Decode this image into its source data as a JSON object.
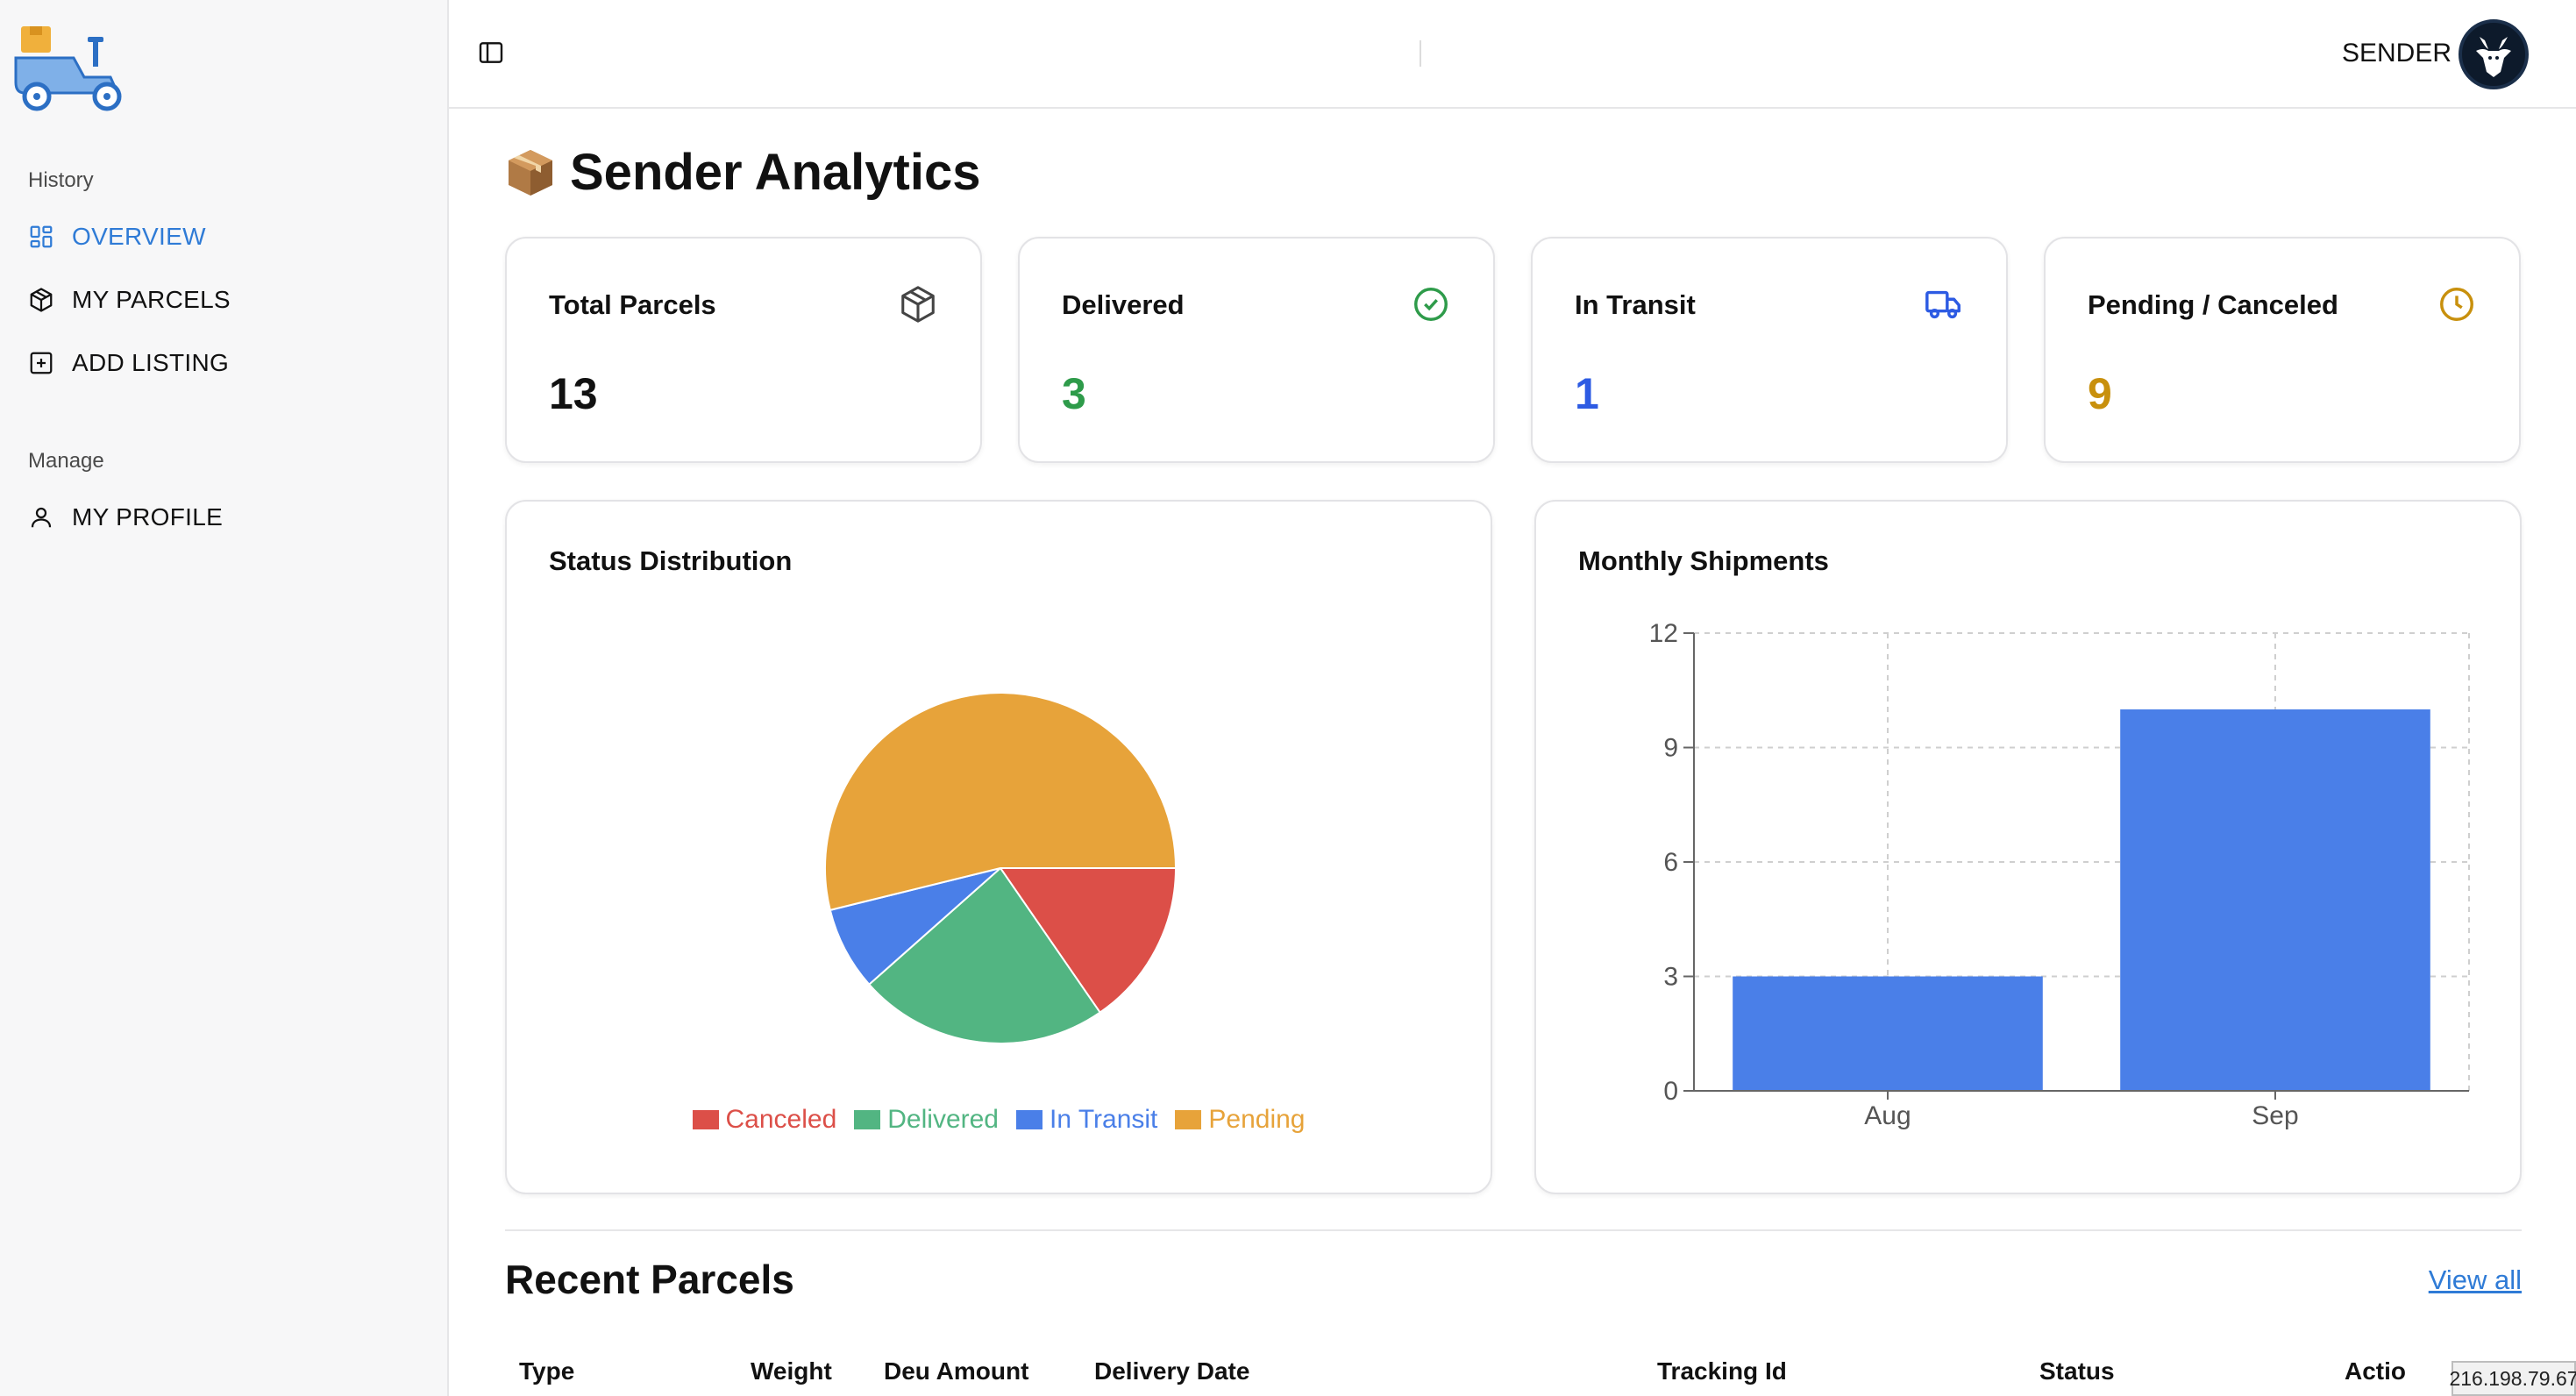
{
  "sidebar": {
    "groups": [
      {
        "label": "History",
        "items": [
          {
            "label": "OVERVIEW",
            "icon": "dashboard-icon",
            "active": true
          },
          {
            "label": "MY PARCELS",
            "icon": "package-icon"
          },
          {
            "label": "ADD LISTING",
            "icon": "plus-square-icon"
          }
        ]
      },
      {
        "label": "Manage",
        "items": [
          {
            "label": "MY PROFILE",
            "icon": "user-icon"
          }
        ]
      }
    ]
  },
  "header": {
    "role": "SENDER"
  },
  "page": {
    "title": "Sender Analytics",
    "title_icon": "package-emoji-icon"
  },
  "stats": [
    {
      "title": "Total Parcels",
      "value": "13",
      "icon": "box-icon",
      "color": "#111111"
    },
    {
      "title": "Delivered",
      "value": "3",
      "icon": "check-circle-icon",
      "color": "#2e9b4a"
    },
    {
      "title": "In Transit",
      "value": "1",
      "icon": "truck-icon",
      "color": "#2d5be3"
    },
    {
      "title": "Pending / Canceled",
      "value": "9",
      "icon": "clock-icon",
      "color": "#c8900d"
    }
  ],
  "charts": {
    "status": {
      "title": "Status Distribution"
    },
    "monthly": {
      "title": "Monthly Shipments"
    }
  },
  "chart_data": [
    {
      "type": "pie",
      "title": "Status Distribution",
      "labels": [
        "Canceled",
        "Delivered",
        "In Transit",
        "Pending"
      ],
      "values": [
        2,
        3,
        1,
        7
      ],
      "colors": [
        "#dc4f48",
        "#52b582",
        "#4a7fe8",
        "#e7a33a"
      ]
    },
    {
      "type": "bar",
      "title": "Monthly Shipments",
      "categories": [
        "Aug",
        "Sep"
      ],
      "values": [
        3,
        10
      ],
      "yticks": [
        0,
        3,
        6,
        9,
        12
      ],
      "ylim": [
        0,
        12
      ],
      "color": "#4a7fe8",
      "grid": true
    }
  ],
  "recent": {
    "title": "Recent Parcels",
    "view_all": "View all",
    "columns": [
      "Type",
      "Weight",
      "Deu Amount",
      "Delivery Date",
      "Tracking Id",
      "Status",
      "Actio"
    ]
  },
  "overlay": {
    "ip": "216.198.79.67"
  }
}
